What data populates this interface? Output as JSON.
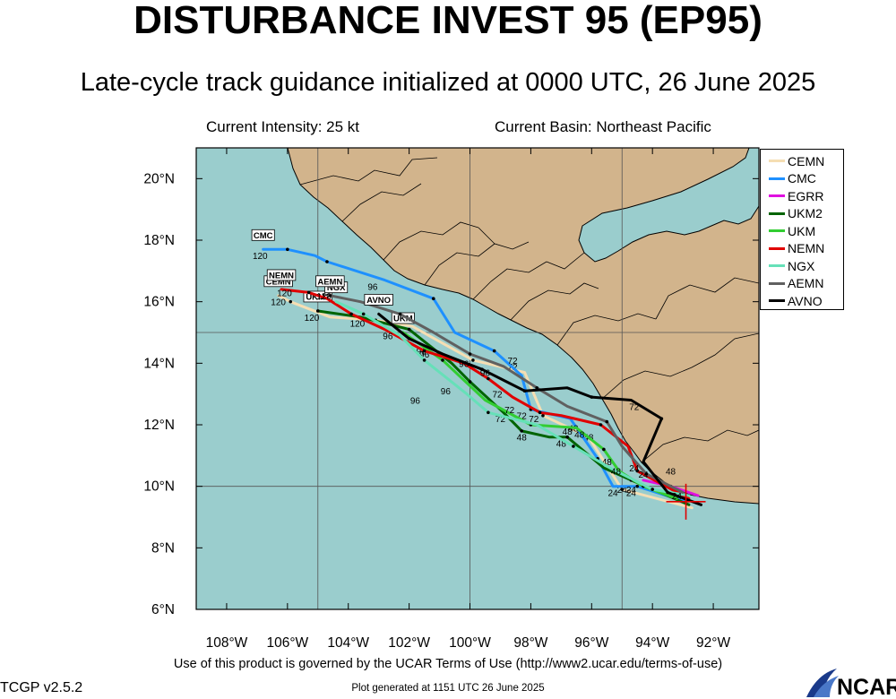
{
  "header": {
    "title": "DISTURBANCE INVEST 95 (EP95)",
    "subtitle": "Late-cycle track guidance initialized at 0000 UTC, 26 June 2025"
  },
  "info": {
    "intensity": "Current Intensity: 25 kt",
    "basin": "Current Basin: Northeast Pacific"
  },
  "map": {
    "lon_range": [
      -109,
      -90.5
    ],
    "lat_range": [
      6,
      21
    ],
    "lon_ticks": [
      {
        "value": -108,
        "label": "108°W"
      },
      {
        "value": -106,
        "label": "106°W"
      },
      {
        "value": -104,
        "label": "104°W"
      },
      {
        "value": -102,
        "label": "102°W"
      },
      {
        "value": -100,
        "label": "100°W"
      },
      {
        "value": -98,
        "label": "98°W"
      },
      {
        "value": -96,
        "label": "96°W"
      },
      {
        "value": -94,
        "label": "94°W"
      },
      {
        "value": -92,
        "label": "92°W"
      }
    ],
    "lat_ticks": [
      {
        "value": 20,
        "label": "20°N"
      },
      {
        "value": 18,
        "label": "18°N"
      },
      {
        "value": 16,
        "label": "16°N"
      },
      {
        "value": 14,
        "label": "14°N"
      },
      {
        "value": 12,
        "label": "12°N"
      },
      {
        "value": 10,
        "label": "10°N"
      },
      {
        "value": 8,
        "label": "8°N"
      },
      {
        "value": 6,
        "label": "6°N"
      }
    ],
    "gridlines": {
      "lon": [
        -105,
        -100,
        -95
      ],
      "lat": [
        15,
        10
      ]
    },
    "colors": {
      "ocean": "#9acdcd",
      "land": "#d2b48c",
      "border": "#000000",
      "storm_marker": "#e00000"
    },
    "current_position": {
      "lon": -92.9,
      "lat": 9.5
    }
  },
  "legend_placement": "top-right",
  "chart_data": {
    "type": "track_map",
    "series": [
      {
        "name": "CEMN",
        "color": "#f5deb3",
        "label_box": "CEMN",
        "points": [
          [
            -92.7,
            9.3
          ],
          [
            -95.0,
            9.9
          ],
          [
            -96.1,
            11.6
          ],
          [
            -97.6,
            12.3
          ],
          [
            -98.2,
            13.7
          ],
          [
            -99.9,
            14.1
          ],
          [
            -101.9,
            15.2
          ],
          [
            -103.1,
            15.4
          ],
          [
            -104.6,
            15.5
          ],
          [
            -105.9,
            16.0
          ],
          [
            -106.3,
            16.2
          ]
        ],
        "taus": [
          [
            -95.0,
            9.9,
            "24"
          ],
          [
            -96.1,
            11.6,
            "48"
          ],
          [
            -98.6,
            13.9,
            "72"
          ],
          [
            -101.6,
            14.4,
            "96"
          ],
          [
            -106.3,
            16.0,
            "120"
          ]
        ]
      },
      {
        "name": "CMC",
        "color": "#1e90ff",
        "label_box": "CMC",
        "points": [
          [
            -92.9,
            9.5
          ],
          [
            -94.5,
            10.0
          ],
          [
            -95.3,
            10.0
          ],
          [
            -95.8,
            10.9
          ],
          [
            -96.7,
            12.2
          ],
          [
            -98.0,
            12.5
          ],
          [
            -98.3,
            13.6
          ],
          [
            -99.2,
            14.4
          ],
          [
            -100.5,
            15.0
          ],
          [
            -101.2,
            16.1
          ],
          [
            -102.8,
            16.7
          ],
          [
            -104.7,
            17.3
          ],
          [
            -105.1,
            17.5
          ],
          [
            -106.0,
            17.7
          ],
          [
            -106.8,
            17.7
          ]
        ],
        "taus": [
          [
            -95.3,
            9.8,
            "24"
          ],
          [
            -96.6,
            11.9,
            "48"
          ],
          [
            -98.3,
            12.3,
            "72"
          ],
          [
            -103.2,
            16.5,
            "96"
          ],
          [
            -106.9,
            17.5,
            "120"
          ]
        ]
      },
      {
        "name": "EGRR",
        "color": "#e010e0",
        "label_box": "",
        "points": [
          [
            -92.5,
            9.7
          ],
          [
            -93.4,
            10.0
          ],
          [
            -94.3,
            10.2
          ]
        ],
        "taus": []
      },
      {
        "name": "UKM2",
        "color": "#006400",
        "label_box": "UKM2",
        "points": [
          [
            -92.8,
            9.4
          ],
          [
            -94.7,
            10.2
          ],
          [
            -95.6,
            10.6
          ],
          [
            -96.8,
            11.6
          ],
          [
            -97.4,
            11.6
          ],
          [
            -98.3,
            11.8
          ],
          [
            -98.9,
            12.4
          ],
          [
            -100.0,
            13.4
          ],
          [
            -100.6,
            14.0
          ],
          [
            -102.0,
            15.1
          ],
          [
            -103.6,
            15.5
          ],
          [
            -105.0,
            15.7
          ]
        ],
        "taus": [
          [
            -94.7,
            9.8,
            "24"
          ],
          [
            -97.0,
            11.4,
            "48"
          ],
          [
            -98.3,
            11.6,
            "48"
          ],
          [
            -99.0,
            12.2,
            "72"
          ],
          [
            -100.8,
            13.1,
            "96"
          ],
          [
            -105.2,
            15.5,
            "120"
          ]
        ]
      },
      {
        "name": "UKM",
        "color": "#32cd32",
        "label_box": "UKM",
        "points": [
          [
            -93.2,
            9.6
          ],
          [
            -94.3,
            10.0
          ],
          [
            -95.1,
            10.5
          ],
          [
            -95.6,
            11.2
          ],
          [
            -96.5,
            11.9
          ],
          [
            -98.0,
            12.0
          ],
          [
            -99.5,
            12.8
          ],
          [
            -100.9,
            14.1
          ],
          [
            -102.2,
            15.0
          ]
        ],
        "taus": [
          [
            -95.5,
            10.8,
            "48"
          ],
          [
            -97.9,
            12.2,
            "72"
          ],
          [
            -101.5,
            14.3,
            "96"
          ]
        ]
      },
      {
        "name": "NEMN",
        "color": "#e00000",
        "label_box": "NEMN",
        "points": [
          [
            -92.8,
            9.6
          ],
          [
            -94.5,
            10.5
          ],
          [
            -94.8,
            11.3
          ],
          [
            -95.7,
            12.0
          ],
          [
            -97.0,
            12.3
          ],
          [
            -97.7,
            12.4
          ],
          [
            -98.6,
            12.9
          ],
          [
            -99.4,
            13.5
          ],
          [
            -100.2,
            14.0
          ],
          [
            -101.5,
            14.4
          ],
          [
            -102.8,
            15.1
          ],
          [
            -103.9,
            15.6
          ],
          [
            -104.7,
            16.1
          ],
          [
            -105.3,
            16.3
          ],
          [
            -106.2,
            16.4
          ]
        ],
        "taus": [
          [
            -94.3,
            10.4,
            "24"
          ],
          [
            -96.4,
            11.7,
            "48"
          ],
          [
            -98.7,
            12.5,
            "72"
          ],
          [
            -99.5,
            13.7,
            "96"
          ],
          [
            -106.1,
            16.3,
            "120"
          ]
        ]
      },
      {
        "name": "NGX",
        "color": "#66e0b8",
        "label_box": "NGX",
        "points": [
          [
            -92.8,
            9.7
          ],
          [
            -94.0,
            9.9
          ],
          [
            -95.4,
            10.6
          ],
          [
            -96.6,
            11.3
          ],
          [
            -97.8,
            12.0
          ],
          [
            -99.4,
            12.4
          ],
          [
            -100.1,
            13.0
          ],
          [
            -101.5,
            14.1
          ],
          [
            -102.3,
            14.9
          ],
          [
            -103.5,
            15.6
          ],
          [
            -104.4,
            16.0
          ]
        ],
        "taus": [
          [
            -93.2,
            9.7,
            "24"
          ],
          [
            -95.2,
            10.5,
            "48"
          ],
          [
            -99.1,
            13.0,
            "72"
          ],
          [
            -101.8,
            12.8,
            "96"
          ]
        ]
      },
      {
        "name": "AEMN",
        "color": "#606060",
        "label_box": "AEMN",
        "points": [
          [
            -93.0,
            9.8
          ],
          [
            -94.2,
            10.4
          ],
          [
            -95.0,
            11.3
          ],
          [
            -95.5,
            12.1
          ],
          [
            -96.8,
            12.6
          ],
          [
            -97.8,
            13.2
          ],
          [
            -98.9,
            13.9
          ],
          [
            -100.0,
            14.3
          ],
          [
            -101.2,
            15.0
          ],
          [
            -102.3,
            15.6
          ],
          [
            -103.6,
            16.0
          ],
          [
            -104.6,
            16.2
          ]
        ],
        "taus": [
          [
            -94.6,
            10.6,
            "24"
          ],
          [
            -96.8,
            11.8,
            "48"
          ],
          [
            -98.6,
            14.1,
            "72"
          ],
          [
            -100.2,
            14.0,
            "96"
          ],
          [
            -104.8,
            16.2,
            "120"
          ]
        ]
      },
      {
        "name": "AVNO",
        "color": "#000000",
        "label_box": "AVNO",
        "points": [
          [
            -92.4,
            9.4
          ],
          [
            -93.5,
            9.8
          ],
          [
            -94.3,
            10.8
          ],
          [
            -93.7,
            12.2
          ],
          [
            -94.7,
            12.8
          ],
          [
            -96.0,
            12.9
          ],
          [
            -96.8,
            13.2
          ],
          [
            -98.2,
            13.1
          ],
          [
            -98.8,
            13.4
          ],
          [
            -99.6,
            13.8
          ],
          [
            -100.9,
            14.3
          ],
          [
            -102.0,
            14.8
          ],
          [
            -103.0,
            15.6
          ]
        ],
        "taus": [
          [
            -94.7,
            9.9,
            "24"
          ],
          [
            -93.4,
            10.5,
            "48"
          ],
          [
            -94.6,
            12.6,
            "72"
          ],
          [
            -102.7,
            14.9,
            "96"
          ],
          [
            -103.7,
            15.3,
            "120"
          ]
        ]
      }
    ]
  },
  "footer": {
    "terms": "Use of this product is governed by the UCAR Terms of Use (http://www2.ucar.edu/terms-of-use)",
    "generated": "Plot generated at 1151 UTC   26 June 2025",
    "version": "TCGP v2.5.2",
    "logo_text": "NCAR"
  }
}
